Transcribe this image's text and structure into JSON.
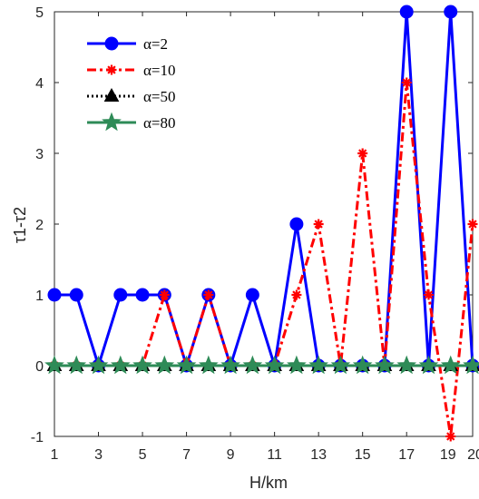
{
  "chart_data": {
    "type": "line",
    "xlabel": "H/km",
    "ylabel": "τ1-τ2",
    "xlim": [
      1,
      20
    ],
    "ylim": [
      -1,
      5
    ],
    "x_ticks": [
      1,
      3,
      5,
      7,
      9,
      11,
      13,
      15,
      17,
      19,
      20
    ],
    "x_tick_labels": [
      "1",
      "3",
      "5",
      "7",
      "9",
      "11",
      "13",
      "15",
      "17",
      "19",
      "20"
    ],
    "y_ticks": [
      -1,
      0,
      1,
      2,
      3,
      4,
      5
    ],
    "y_tick_labels": [
      "-1",
      "0",
      "1",
      "2",
      "3",
      "4",
      "5"
    ],
    "grid": false,
    "legend_position": "top-left",
    "x": [
      1,
      2,
      3,
      4,
      5,
      6,
      7,
      8,
      9,
      10,
      11,
      12,
      13,
      14,
      15,
      16,
      17,
      18,
      19,
      20
    ],
    "series": [
      {
        "name": "α=2",
        "color": "#0000ff",
        "dash": "solid",
        "marker": "circle",
        "values": [
          1,
          1,
          0,
          1,
          1,
          1,
          0,
          1,
          0,
          1,
          0,
          2,
          0,
          0,
          0,
          0,
          5,
          0,
          5,
          0
        ]
      },
      {
        "name": "α=10",
        "color": "#ff0000",
        "dash": "dashdot",
        "marker": "asterisk",
        "values": [
          0,
          0,
          0,
          0,
          0,
          1,
          0,
          1,
          0,
          0,
          0,
          1,
          2,
          0,
          3,
          0,
          4,
          1,
          -1,
          2
        ]
      },
      {
        "name": "α=50",
        "color": "#000000",
        "dash": "dotted",
        "marker": "triangle",
        "values": [
          0,
          0,
          0,
          0,
          0,
          0,
          0,
          0,
          0,
          0,
          0,
          0,
          0,
          0,
          0,
          0,
          0,
          0,
          0,
          0
        ]
      },
      {
        "name": "α=80",
        "color": "#2e8b57",
        "dash": "solid",
        "marker": "star",
        "values": [
          0,
          0,
          0,
          0,
          0,
          0,
          0,
          0,
          0,
          0,
          0,
          0,
          0,
          0,
          0,
          0,
          0,
          0,
          0,
          0
        ]
      }
    ]
  }
}
